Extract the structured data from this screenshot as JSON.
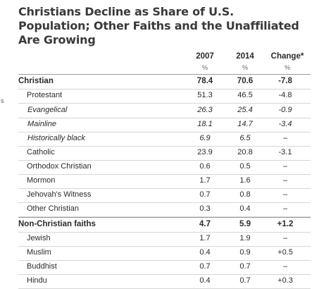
{
  "title": "Christians Decline as Share of U.S. Population; Other Faiths and the Unaffiliated Are Growing",
  "stray_char": "s",
  "columns": {
    "col1": "2007",
    "col2": "2014",
    "col3": "Change*",
    "unit": "%"
  },
  "rows": [
    {
      "label": "Christian",
      "v2007": "78.4",
      "v2014": "70.6",
      "change": "-7.8",
      "style": "bold"
    },
    {
      "label": "Protestant",
      "v2007": "51.3",
      "v2014": "46.5",
      "change": "-4.8",
      "style": "indent1"
    },
    {
      "label": "Evangelical",
      "v2007": "26.3",
      "v2014": "25.4",
      "change": "-0.9",
      "style": "indent2"
    },
    {
      "label": "Mainline",
      "v2007": "18.1",
      "v2014": "14.7",
      "change": "-3.4",
      "style": "indent2"
    },
    {
      "label": "Historically black",
      "v2007": "6.9",
      "v2014": "6.5",
      "change": "–",
      "style": "indent2"
    },
    {
      "label": "Catholic",
      "v2007": "23.9",
      "v2014": "20.8",
      "change": "-3.1",
      "style": "indent1"
    },
    {
      "label": "Orthodox Christian",
      "v2007": "0.6",
      "v2014": "0.5",
      "change": "–",
      "style": "indent1"
    },
    {
      "label": "Mormon",
      "v2007": "1.7",
      "v2014": "1.6",
      "change": "–",
      "style": "indent1"
    },
    {
      "label": "Jehovah's Witness",
      "v2007": "0.7",
      "v2014": "0.8",
      "change": "–",
      "style": "indent1"
    },
    {
      "label": "Other Christian",
      "v2007": "0.3",
      "v2014": "0.4",
      "change": "–",
      "style": "indent1"
    },
    {
      "label": "Non-Christian faiths",
      "v2007": "4.7",
      "v2014": "5.9",
      "change": "+1.2",
      "style": "bold"
    },
    {
      "label": "Jewish",
      "v2007": "1.7",
      "v2014": "1.9",
      "change": "–",
      "style": "indent1"
    },
    {
      "label": "Muslim",
      "v2007": "0.4",
      "v2014": "0.9",
      "change": "+0.5",
      "style": "indent1"
    },
    {
      "label": "Buddhist",
      "v2007": "0.7",
      "v2014": "0.7",
      "change": "–",
      "style": "indent1"
    },
    {
      "label": "Hindu",
      "v2007": "0.4",
      "v2014": "0.7",
      "change": "+0.3",
      "style": "indent1"
    }
  ]
}
